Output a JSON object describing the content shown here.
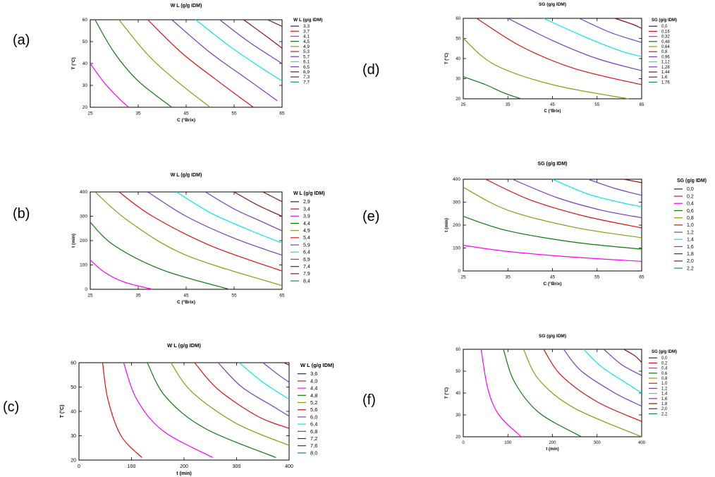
{
  "panel_labels": [
    "(a)",
    "(b)",
    "(c)",
    "(d)",
    "(e)",
    "(f)"
  ],
  "colors": {
    "palette": [
      "#1a1aa8",
      "#e01010",
      "#ff00ff",
      "#0a7a0a",
      "#8a9a10",
      "#e01010",
      "#7a3ac8",
      "#00e8e8",
      "#7a3ac8",
      "#8a1010",
      "#7a2020",
      "#0a8a8a"
    ]
  },
  "chart_data": [
    {
      "type": "line",
      "title": "W L (g/g IDM)",
      "xlabel": "C (°Brix)",
      "ylabel": "T (°C)",
      "xlim": [
        25,
        65
      ],
      "ylim": [
        20,
        60
      ],
      "xticks": [
        25,
        35,
        45,
        55,
        65
      ],
      "yticks": [
        20,
        30,
        40,
        50,
        60
      ],
      "legend_title": "W L (g/g IDM)",
      "legend": [
        "3,3",
        "3,7",
        "4,1",
        "4,5",
        "4,9",
        "5,3",
        "5,7",
        "6,1",
        "6,5",
        "6,9",
        "7,3",
        "7,7"
      ],
      "series": [
        {
          "level": "4,1",
          "x": [
            25,
            28,
            31,
            33
          ],
          "y": [
            40,
            31,
            24,
            20
          ]
        },
        {
          "level": "4,5",
          "x": [
            26,
            30,
            35,
            42
          ],
          "y": [
            60,
            45,
            32,
            20
          ]
        },
        {
          "level": "4,9",
          "x": [
            31,
            37,
            43,
            50
          ],
          "y": [
            60,
            44,
            32,
            20
          ]
        },
        {
          "level": "5,3",
          "x": [
            37,
            44,
            51,
            59
          ],
          "y": [
            60,
            45,
            33,
            20
          ]
        },
        {
          "level": "5,7",
          "x": [
            42,
            50,
            57,
            64
          ],
          "y": [
            60,
            45,
            34,
            23
          ]
        },
        {
          "level": "6,1",
          "x": [
            47,
            54,
            60,
            65
          ],
          "y": [
            60,
            48,
            39,
            32
          ]
        },
        {
          "level": "6,5",
          "x": [
            52,
            58,
            65
          ],
          "y": [
            60,
            50,
            40
          ]
        },
        {
          "level": "6,9",
          "x": [
            57,
            62,
            65
          ],
          "y": [
            60,
            52,
            47
          ]
        },
        {
          "level": "7,3",
          "x": [
            62,
            65
          ],
          "y": [
            60,
            57
          ]
        }
      ]
    },
    {
      "type": "line",
      "title": "W L (g/g IDM)",
      "xlabel": "C (°Brix)",
      "ylabel": "t (min)",
      "xlim": [
        25,
        65
      ],
      "ylim": [
        0,
        400
      ],
      "xticks": [
        25,
        35,
        45,
        55,
        65
      ],
      "yticks": [
        0,
        100,
        200,
        300,
        400
      ],
      "legend_title": "W L (g/g IDM)",
      "legend": [
        "2,9",
        "3,4",
        "3,9",
        "4,4",
        "4,9",
        "5,4",
        "5,9",
        "6,4",
        "6,9",
        "7,4",
        "7,9",
        "8,4"
      ],
      "series": [
        {
          "level": "3,9",
          "x": [
            25,
            28,
            32,
            38
          ],
          "y": [
            120,
            70,
            30,
            0
          ]
        },
        {
          "level": "4,4",
          "x": [
            25,
            30,
            40,
            54
          ],
          "y": [
            275,
            180,
            80,
            0
          ]
        },
        {
          "level": "4,9",
          "x": [
            26,
            33,
            45,
            65
          ],
          "y": [
            400,
            280,
            140,
            15
          ]
        },
        {
          "level": "5,4",
          "x": [
            31,
            38,
            50,
            65
          ],
          "y": [
            400,
            300,
            180,
            75
          ]
        },
        {
          "level": "5,9",
          "x": [
            37,
            45,
            55,
            65
          ],
          "y": [
            400,
            300,
            210,
            140
          ]
        },
        {
          "level": "6,4",
          "x": [
            43,
            50,
            58,
            65
          ],
          "y": [
            400,
            315,
            245,
            190
          ]
        },
        {
          "level": "6,9",
          "x": [
            49,
            55,
            60,
            65
          ],
          "y": [
            400,
            330,
            285,
            240
          ]
        },
        {
          "level": "7,4",
          "x": [
            55,
            60,
            65
          ],
          "y": [
            400,
            345,
            300
          ]
        },
        {
          "level": "7,9",
          "x": [
            61,
            65
          ],
          "y": [
            400,
            360
          ]
        }
      ]
    },
    {
      "type": "line",
      "title": "W L (g/g IDM)",
      "xlabel": "t (min)",
      "ylabel": "T (°C)",
      "xlim": [
        0,
        400
      ],
      "ylim": [
        20,
        60
      ],
      "xticks": [
        0,
        100,
        200,
        300,
        400
      ],
      "yticks": [
        20,
        30,
        40,
        50,
        60
      ],
      "legend_title": "W L (g/g IDM)",
      "legend": [
        "3,6",
        "4,0",
        "4,4",
        "4,8",
        "5,2",
        "5,6",
        "6,0",
        "6,4",
        "6,8",
        "7,2",
        "7,6",
        "8,0"
      ],
      "series": [
        {
          "level": "4,0",
          "x": [
            45,
            55,
            80,
            120
          ],
          "y": [
            60,
            45,
            30,
            21
          ]
        },
        {
          "level": "4,4",
          "x": [
            85,
            110,
            160,
            255
          ],
          "y": [
            60,
            45,
            32,
            21
          ]
        },
        {
          "level": "4,8",
          "x": [
            130,
            165,
            240,
            375
          ],
          "y": [
            60,
            46,
            33,
            21
          ]
        },
        {
          "level": "5,2",
          "x": [
            175,
            215,
            300,
            400
          ],
          "y": [
            60,
            48,
            35,
            26
          ]
        },
        {
          "level": "5,6",
          "x": [
            220,
            265,
            340,
            400
          ],
          "y": [
            60,
            49,
            38,
            33
          ]
        },
        {
          "level": "6,0",
          "x": [
            265,
            310,
            370,
            400
          ],
          "y": [
            60,
            50,
            42,
            38
          ]
        },
        {
          "level": "6,4",
          "x": [
            305,
            350,
            400
          ],
          "y": [
            60,
            52,
            45
          ]
        },
        {
          "level": "6,8",
          "x": [
            350,
            380,
            400
          ],
          "y": [
            60,
            55,
            52
          ]
        },
        {
          "level": "7,2",
          "x": [
            390,
            400
          ],
          "y": [
            60,
            59
          ]
        }
      ]
    },
    {
      "type": "line",
      "title": "SG (g/g IDM)",
      "xlabel": "C (°Brix)",
      "ylabel": "T (°C)",
      "xlim": [
        25,
        65
      ],
      "ylim": [
        20,
        60
      ],
      "xticks": [
        25,
        35,
        45,
        55,
        65
      ],
      "yticks": [
        20,
        30,
        40,
        50,
        60
      ],
      "legend_title": "SG (g/g IDM)",
      "legend": [
        "0,0",
        "0,16",
        "0,32",
        "0,48",
        "0,64",
        "0,8",
        "0,96",
        "1,12",
        "1,28",
        "1,44",
        "1,6",
        "1,76"
      ],
      "series": [
        {
          "level": "0,48",
          "x": [
            25,
            30,
            34,
            38
          ],
          "y": [
            31,
            27,
            23,
            20
          ]
        },
        {
          "level": "0,64",
          "x": [
            25,
            32,
            45,
            62
          ],
          "y": [
            50,
            37,
            27,
            20
          ]
        },
        {
          "level": "0,8",
          "x": [
            28,
            38,
            50,
            65
          ],
          "y": [
            60,
            46,
            35,
            27
          ]
        },
        {
          "level": "0,96",
          "x": [
            35,
            45,
            55,
            65
          ],
          "y": [
            60,
            49,
            40,
            34
          ]
        },
        {
          "level": "1,12",
          "x": [
            43,
            52,
            60,
            65
          ],
          "y": [
            60,
            51,
            44,
            41
          ]
        },
        {
          "level": "1,28",
          "x": [
            51,
            58,
            65
          ],
          "y": [
            60,
            53,
            48
          ]
        },
        {
          "level": "1,44",
          "x": [
            59,
            63,
            65
          ],
          "y": [
            60,
            57,
            55
          ]
        }
      ]
    },
    {
      "type": "line",
      "title": "SG (g/g IDM)",
      "xlabel": "C (°Brix)",
      "ylabel": "t (min)",
      "xlim": [
        25,
        65
      ],
      "ylim": [
        0,
        400
      ],
      "xticks": [
        25,
        35,
        45,
        55,
        65
      ],
      "yticks": [
        0,
        100,
        200,
        300,
        400
      ],
      "legend_title": "SG (g/g IDM)",
      "legend": [
        "0,0",
        "0,2",
        "0,4",
        "0,6",
        "0,8",
        "1,0",
        "1,2",
        "1,4",
        "1,6",
        "1,8",
        "2,0",
        "2,2"
      ],
      "series": [
        {
          "level": "0,4",
          "x": [
            25,
            35,
            50,
            65
          ],
          "y": [
            112,
            85,
            60,
            42
          ]
        },
        {
          "level": "0,6",
          "x": [
            25,
            35,
            50,
            65
          ],
          "y": [
            238,
            175,
            125,
            95
          ]
        },
        {
          "level": "0,8",
          "x": [
            25,
            35,
            50,
            65
          ],
          "y": [
            365,
            265,
            190,
            145
          ]
        },
        {
          "level": "1,0",
          "x": [
            30,
            40,
            52,
            65
          ],
          "y": [
            400,
            310,
            240,
            188
          ]
        },
        {
          "level": "1,2",
          "x": [
            36,
            46,
            56,
            65
          ],
          "y": [
            400,
            320,
            265,
            232
          ]
        },
        {
          "level": "1,4",
          "x": [
            45,
            53,
            60,
            65
          ],
          "y": [
            400,
            335,
            300,
            280
          ]
        },
        {
          "level": "1,6",
          "x": [
            53,
            59,
            65
          ],
          "y": [
            400,
            360,
            330
          ]
        },
        {
          "level": "1,8",
          "x": [
            61,
            65
          ],
          "y": [
            400,
            385
          ]
        }
      ]
    },
    {
      "type": "line",
      "title": "SG (g/g IDM)",
      "xlabel": "t (min)",
      "ylabel": "T (°C)",
      "xlim": [
        0,
        400
      ],
      "ylim": [
        20,
        60
      ],
      "xticks": [
        0,
        100,
        200,
        300,
        400
      ],
      "yticks": [
        20,
        30,
        40,
        50,
        60
      ],
      "legend_title": "SG (g/g IDM)",
      "legend": [
        "0,0",
        "0,2",
        "0,4",
        "0,6",
        "0,8",
        "1,0",
        "1,2",
        "1,4",
        "1,6",
        "1,8",
        "2,0",
        "2,2"
      ],
      "series": [
        {
          "level": "0,4",
          "x": [
            40,
            55,
            80,
            130
          ],
          "y": [
            60,
            42,
            30,
            20
          ]
        },
        {
          "level": "0,6",
          "x": [
            90,
            115,
            170,
            265
          ],
          "y": [
            60,
            45,
            31,
            20
          ]
        },
        {
          "level": "0,8",
          "x": [
            135,
            170,
            250,
            400
          ],
          "y": [
            60,
            46,
            33,
            20
          ]
        },
        {
          "level": "1,0",
          "x": [
            180,
            220,
            300,
            400
          ],
          "y": [
            60,
            48,
            36,
            27
          ]
        },
        {
          "level": "1,2",
          "x": [
            225,
            265,
            340,
            400
          ],
          "y": [
            60,
            50,
            40,
            34
          ]
        },
        {
          "level": "1,4",
          "x": [
            270,
            310,
            370,
            400
          ],
          "y": [
            60,
            52,
            44,
            40
          ]
        },
        {
          "level": "1,6",
          "x": [
            315,
            355,
            400
          ],
          "y": [
            60,
            53,
            48
          ]
        },
        {
          "level": "1,8",
          "x": [
            360,
            385,
            400
          ],
          "y": [
            60,
            57,
            54
          ]
        }
      ]
    }
  ]
}
